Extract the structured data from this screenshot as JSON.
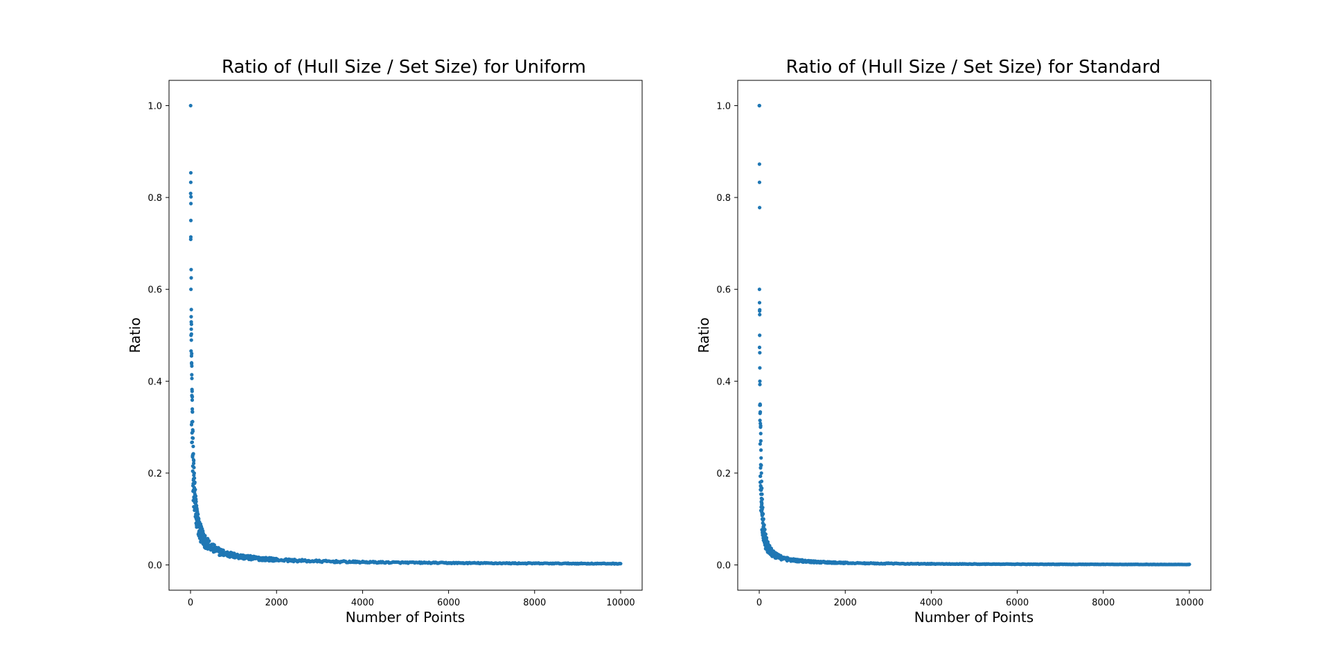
{
  "chart_data": [
    {
      "type": "scatter",
      "title": "Ratio of (Hull Size / Set Size) for Uniform",
      "xlabel": "Number of Points",
      "ylabel": "Ratio",
      "xlim": [
        -500,
        10500
      ],
      "ylim": [
        -0.055,
        1.055
      ],
      "xticks": [
        0,
        2000,
        4000,
        6000,
        8000,
        10000
      ],
      "xtick_labels": [
        "0",
        "2000",
        "4000",
        "6000",
        "8000",
        "10000"
      ],
      "yticks": [
        0.0,
        0.2,
        0.4,
        0.6,
        0.8,
        1.0
      ],
      "ytick_labels": [
        "0.0",
        "0.2",
        "0.4",
        "0.6",
        "0.8",
        "1.0"
      ],
      "grid": false,
      "color": "#1f77b4",
      "curve_model": "ratio ≈ a·ln(n)/n with spread, floored by 3/n and capped at 1",
      "curve_coefficient": 3.0,
      "points": [
        [
          3,
          1.0
        ],
        [
          6,
          0.833
        ],
        [
          8,
          0.75
        ],
        [
          7,
          0.714
        ],
        [
          14,
          0.643
        ],
        [
          16,
          0.625
        ],
        [
          10,
          0.6
        ],
        [
          18,
          0.556
        ],
        [
          17,
          0.529
        ],
        [
          21,
          0.524
        ],
        [
          12,
          0.5
        ],
        [
          22,
          0.455
        ],
        [
          25,
          0.44
        ],
        [
          30,
          0.433
        ],
        [
          29,
          0.414
        ],
        [
          32,
          0.406
        ],
        [
          34,
          0.382
        ],
        [
          37,
          0.378
        ],
        [
          39,
          0.359
        ],
        [
          41,
          0.366
        ],
        [
          45,
          0.333
        ],
        [
          48,
          0.312
        ],
        [
          51,
          0.294
        ],
        [
          55,
          0.291
        ],
        [
          58,
          0.276
        ],
        [
          62,
          0.258
        ],
        [
          66,
          0.242
        ],
        [
          70,
          0.229
        ],
        [
          75,
          0.227
        ],
        [
          80,
          0.212
        ],
        [
          85,
          0.2
        ],
        [
          90,
          0.189
        ],
        [
          100,
          0.18
        ],
        [
          110,
          0.164
        ],
        [
          120,
          0.15
        ],
        [
          130,
          0.138
        ],
        [
          140,
          0.129
        ],
        [
          150,
          0.12
        ],
        [
          160,
          0.113
        ],
        [
          175,
          0.103
        ],
        [
          190,
          0.095
        ],
        [
          205,
          0.088
        ],
        [
          220,
          0.082
        ],
        [
          240,
          0.075
        ],
        [
          260,
          0.069
        ],
        [
          280,
          0.064
        ],
        [
          300,
          0.06
        ],
        [
          330,
          0.055
        ],
        [
          360,
          0.05
        ],
        [
          400,
          0.046
        ],
        [
          450,
          0.041
        ],
        [
          500,
          0.037
        ],
        [
          600,
          0.031
        ],
        [
          700,
          0.027
        ],
        [
          800,
          0.024
        ],
        [
          1000,
          0.02
        ],
        [
          1200,
          0.017
        ],
        [
          1500,
          0.014
        ],
        [
          2000,
          0.011
        ],
        [
          3000,
          0.008
        ],
        [
          4000,
          0.006
        ],
        [
          5000,
          0.005
        ],
        [
          6000,
          0.0044
        ],
        [
          7000,
          0.0038
        ],
        [
          8000,
          0.0034
        ],
        [
          9000,
          0.0031
        ],
        [
          10000,
          0.0028
        ]
      ]
    },
    {
      "type": "scatter",
      "title": "Ratio of (Hull Size / Set Size) for Standard",
      "xlabel": "Number of Points",
      "ylabel": "Ratio",
      "xlim": [
        -500,
        10500
      ],
      "ylim": [
        -0.055,
        1.055
      ],
      "xticks": [
        0,
        2000,
        4000,
        6000,
        8000,
        10000
      ],
      "xtick_labels": [
        "0",
        "2000",
        "4000",
        "6000",
        "8000",
        "10000"
      ],
      "yticks": [
        0.0,
        0.2,
        0.4,
        0.6,
        0.8,
        1.0
      ],
      "ytick_labels": [
        "0.0",
        "0.2",
        "0.4",
        "0.6",
        "0.8",
        "1.0"
      ],
      "grid": false,
      "color": "#1f77b4",
      "curve_model": "ratio ≈ a·sqrt(ln n)/n with spread, floored by 3/n and capped at 1",
      "curve_coefficient": 3.2,
      "points": [
        [
          3,
          1.0
        ],
        [
          4,
          1.0
        ],
        [
          6,
          0.833
        ],
        [
          9,
          0.778
        ],
        [
          5,
          0.6
        ],
        [
          7,
          0.571
        ],
        [
          11,
          0.545
        ],
        [
          10,
          0.5
        ],
        [
          13,
          0.462
        ],
        [
          14,
          0.429
        ],
        [
          15,
          0.4
        ],
        [
          20,
          0.35
        ],
        [
          23,
          0.348
        ],
        [
          24,
          0.333
        ],
        [
          26,
          0.308
        ],
        [
          30,
          0.3
        ],
        [
          33,
          0.303
        ],
        [
          35,
          0.286
        ],
        [
          37,
          0.27
        ],
        [
          40,
          0.25
        ],
        [
          43,
          0.233
        ],
        [
          46,
          0.217
        ],
        [
          50,
          0.2
        ],
        [
          55,
          0.182
        ],
        [
          60,
          0.167
        ],
        [
          65,
          0.154
        ],
        [
          70,
          0.143
        ],
        [
          80,
          0.125
        ],
        [
          90,
          0.111
        ],
        [
          100,
          0.1
        ],
        [
          115,
          0.087
        ],
        [
          130,
          0.077
        ],
        [
          150,
          0.067
        ],
        [
          170,
          0.059
        ],
        [
          200,
          0.05
        ],
        [
          240,
          0.042
        ],
        [
          280,
          0.036
        ],
        [
          330,
          0.03
        ],
        [
          400,
          0.025
        ],
        [
          500,
          0.02
        ],
        [
          650,
          0.016
        ],
        [
          800,
          0.013
        ],
        [
          1000,
          0.011
        ],
        [
          1500,
          0.0075
        ],
        [
          2000,
          0.0057
        ],
        [
          3000,
          0.004
        ],
        [
          4000,
          0.0031
        ],
        [
          5000,
          0.0025
        ],
        [
          6000,
          0.0021
        ],
        [
          7000,
          0.0018
        ],
        [
          8000,
          0.0016
        ],
        [
          9000,
          0.0014
        ],
        [
          10000,
          0.0013
        ]
      ]
    }
  ]
}
